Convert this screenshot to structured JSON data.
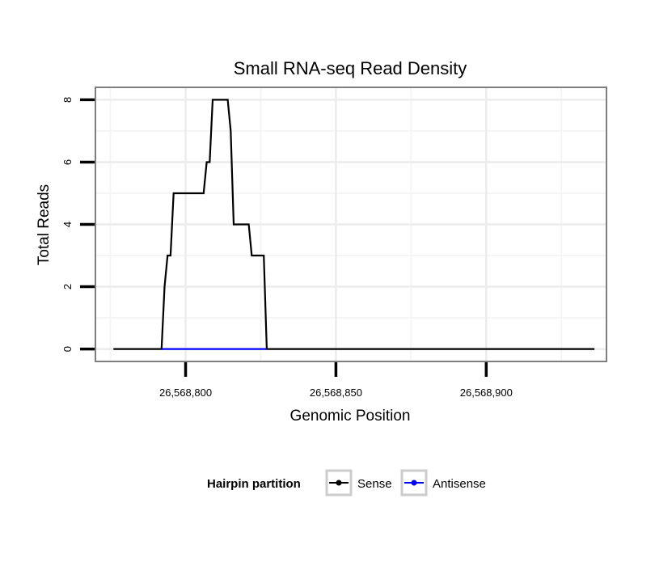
{
  "chart_data": {
    "type": "line",
    "title": "Small RNA-seq Read Density",
    "xlabel": "Genomic Position",
    "ylabel": "Total Reads",
    "xlim": [
      26568770,
      26568940
    ],
    "ylim": [
      -0.4,
      8.4
    ],
    "x_ticks": [
      26568800,
      26568850,
      26568900
    ],
    "x_tick_labels": [
      "26,568,800",
      "26,568,850",
      "26,568,900"
    ],
    "y_ticks": [
      0,
      2,
      4,
      6,
      8
    ],
    "y_tick_labels": [
      "0",
      "2",
      "4",
      "6",
      "8"
    ],
    "x_minor_gridlines": [
      26568775,
      26568825,
      26568875,
      26568925
    ],
    "y_minor_gridlines": [
      1,
      3,
      5,
      7
    ],
    "grid": true,
    "legend": {
      "title": "Hairpin partition",
      "position": "bottom"
    },
    "series": [
      {
        "name": "Sense",
        "color": "#000000",
        "x": [
          26568776,
          26568792,
          26568793,
          26568794,
          26568795,
          26568796,
          26568797,
          26568806,
          26568807,
          26568808,
          26568809,
          26568810,
          26568814,
          26568815,
          26568816,
          26568817,
          26568821,
          26568822,
          26568826,
          26568827,
          26568936
        ],
        "values": [
          0,
          0,
          2,
          3,
          3,
          5,
          5,
          5,
          6,
          6,
          8,
          8,
          8,
          7,
          4,
          4,
          4,
          3,
          3,
          0,
          0
        ]
      },
      {
        "name": "Antisense",
        "color": "#0000ff",
        "x": [
          26568792,
          26568827
        ],
        "values": [
          0,
          0
        ]
      }
    ]
  }
}
